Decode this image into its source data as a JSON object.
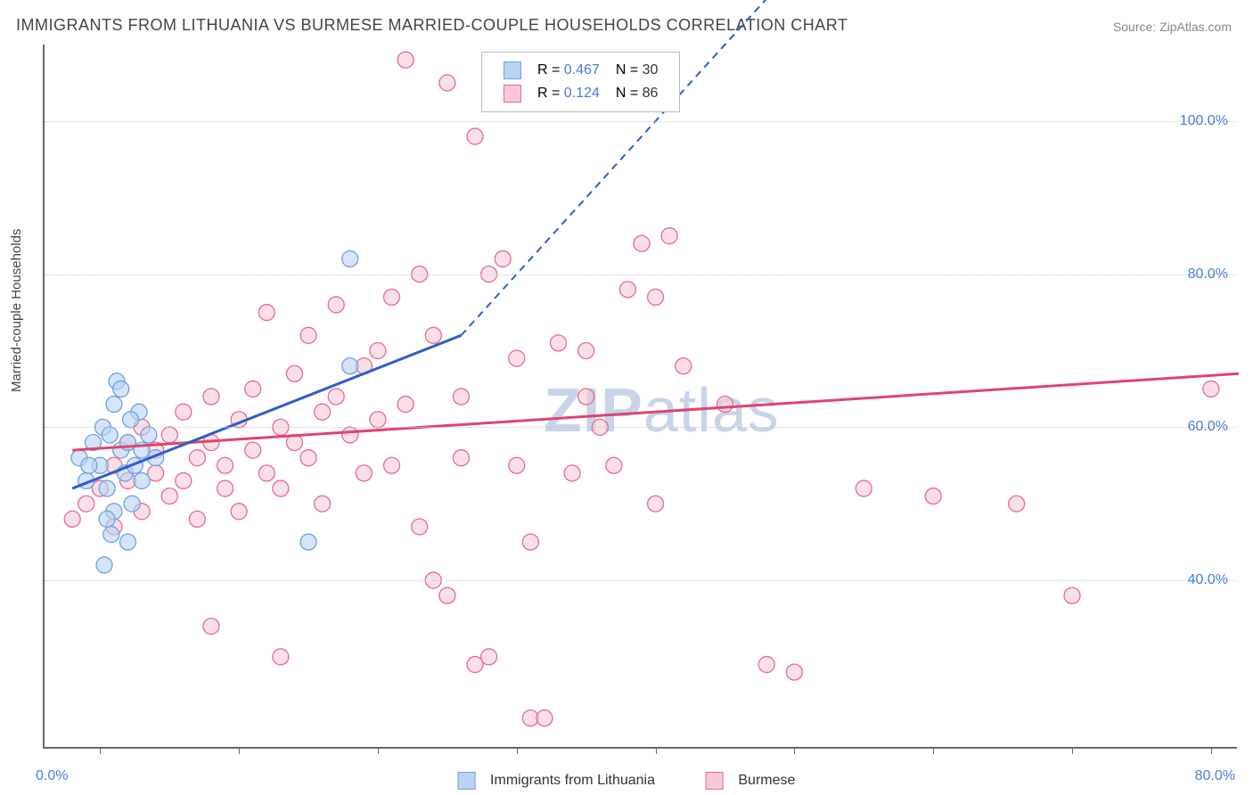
{
  "title": "IMMIGRANTS FROM LITHUANIA VS BURMESE MARRIED-COUPLE HOUSEHOLDS CORRELATION CHART",
  "source_label": "Source: ZipAtlas.com",
  "ylabel": "Married-couple Households",
  "watermark_bold": "ZIP",
  "watermark_rest": "atlas",
  "chart": {
    "type": "scatter_with_trendlines",
    "background_color": "#ffffff",
    "grid_color": "#cccccc",
    "axis_color": "#666666",
    "tick_label_color": "#4a7dd8",
    "text_color": "#444444",
    "title_fontsize": 18,
    "label_fontsize": 15,
    "tick_fontsize": 16,
    "xlim": [
      -4,
      82
    ],
    "ylim": [
      18,
      110
    ],
    "yticks": [
      40,
      60,
      80,
      100
    ],
    "ytick_labels": [
      "40.0%",
      "60.0%",
      "80.0%",
      "100.0%"
    ],
    "xtick_positions": [
      0,
      10,
      20,
      30,
      40,
      50,
      60,
      70,
      80
    ],
    "xtick_labels": {
      "0": "0.0%",
      "80": "80.0%"
    },
    "marker_radius": 9,
    "marker_stroke_width": 1.3,
    "trend_line_width": 3,
    "trend_dash": "8,6"
  },
  "series": {
    "lithuania": {
      "label": "Immigrants from Lithuania",
      "color_fill": "#b9d3f2",
      "color_stroke": "#6fa0e0",
      "trend_color": "#2f5dca",
      "R": "0.467",
      "N": "30",
      "trend": {
        "x1": -2,
        "y1": 52,
        "x2": 26,
        "y2": 72,
        "x2_dash": 50,
        "y2_dash": 120
      },
      "points": [
        [
          -1.5,
          56
        ],
        [
          -1,
          53
        ],
        [
          -0.5,
          58
        ],
        [
          0,
          55
        ],
        [
          0.2,
          60
        ],
        [
          0.5,
          52
        ],
        [
          1,
          63
        ],
        [
          1,
          49
        ],
        [
          1.2,
          66
        ],
        [
          1.5,
          57
        ],
        [
          1.8,
          54
        ],
        [
          2,
          58
        ],
        [
          2,
          45
        ],
        [
          2.3,
          50
        ],
        [
          0.5,
          48
        ],
        [
          0.8,
          46
        ],
        [
          2.5,
          55
        ],
        [
          2.8,
          62
        ],
        [
          3,
          57
        ],
        [
          0.3,
          42
        ],
        [
          3.5,
          59
        ],
        [
          4,
          56
        ],
        [
          1.5,
          65
        ],
        [
          2.2,
          61
        ],
        [
          0.7,
          59
        ],
        [
          -0.8,
          55
        ],
        [
          18,
          82
        ],
        [
          18,
          68
        ],
        [
          15,
          45
        ],
        [
          3,
          53
        ]
      ]
    },
    "burmese": {
      "label": "Burmese",
      "color_fill": "#f7c9d6",
      "color_stroke": "#e66b8f",
      "trend_color": "#e0446f",
      "R": "0.124",
      "N": "86",
      "trend": {
        "x1": -2,
        "y1": 57,
        "x2": 82,
        "y2": 67
      },
      "points": [
        [
          -2,
          48
        ],
        [
          -1,
          50
        ],
        [
          0,
          52
        ],
        [
          1,
          47
        ],
        [
          1,
          55
        ],
        [
          2,
          53
        ],
        [
          2,
          58
        ],
        [
          3,
          49
        ],
        [
          3,
          60
        ],
        [
          4,
          54
        ],
        [
          4,
          57
        ],
        [
          5,
          51
        ],
        [
          5,
          59
        ],
        [
          6,
          53
        ],
        [
          6,
          62
        ],
        [
          7,
          56
        ],
        [
          7,
          48
        ],
        [
          8,
          58
        ],
        [
          8,
          64
        ],
        [
          9,
          55
        ],
        [
          9,
          52
        ],
        [
          10,
          61
        ],
        [
          10,
          49
        ],
        [
          11,
          57
        ],
        [
          11,
          65
        ],
        [
          12,
          54
        ],
        [
          12,
          75
        ],
        [
          13,
          60
        ],
        [
          13,
          52
        ],
        [
          14,
          67
        ],
        [
          14,
          58
        ],
        [
          15,
          56
        ],
        [
          15,
          72
        ],
        [
          16,
          62
        ],
        [
          16,
          50
        ],
        [
          17,
          64
        ],
        [
          17,
          76
        ],
        [
          18,
          59
        ],
        [
          19,
          68
        ],
        [
          19,
          54
        ],
        [
          20,
          70
        ],
        [
          20,
          61
        ],
        [
          21,
          77
        ],
        [
          21,
          55
        ],
        [
          22,
          108
        ],
        [
          22,
          63
        ],
        [
          23,
          80
        ],
        [
          23,
          47
        ],
        [
          24,
          72
        ],
        [
          25,
          38
        ],
        [
          25,
          105
        ],
        [
          26,
          56
        ],
        [
          26,
          64
        ],
        [
          27,
          98
        ],
        [
          28,
          80
        ],
        [
          28,
          30
        ],
        [
          29,
          82
        ],
        [
          30,
          55
        ],
        [
          30,
          69
        ],
        [
          31,
          45
        ],
        [
          31,
          22
        ],
        [
          27,
          29
        ],
        [
          13,
          30
        ],
        [
          8,
          34
        ],
        [
          24,
          40
        ],
        [
          32,
          22
        ],
        [
          33,
          71
        ],
        [
          34,
          54
        ],
        [
          35,
          64
        ],
        [
          36,
          60
        ],
        [
          37,
          55
        ],
        [
          38,
          78
        ],
        [
          39,
          84
        ],
        [
          40,
          50
        ],
        [
          40,
          77
        ],
        [
          41,
          85
        ],
        [
          42,
          68
        ],
        [
          45,
          63
        ],
        [
          48,
          29
        ],
        [
          50,
          28
        ],
        [
          55,
          52
        ],
        [
          60,
          51
        ],
        [
          66,
          50
        ],
        [
          70,
          38
        ],
        [
          80,
          65
        ],
        [
          35,
          70
        ]
      ]
    }
  },
  "legend_top": {
    "R_prefix": "R =",
    "N_prefix": "N ="
  },
  "legend_bottom": {
    "item1": "Immigrants from Lithuania",
    "item2": "Burmese"
  }
}
